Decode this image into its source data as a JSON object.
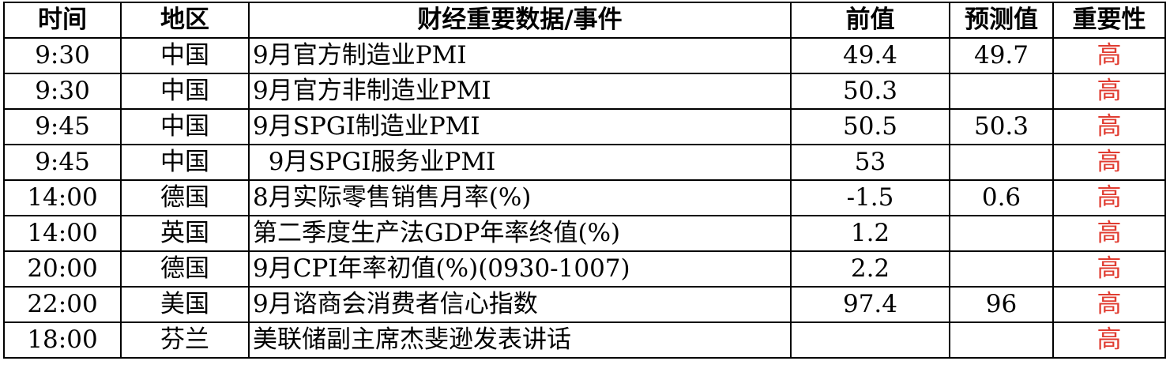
{
  "headers": [
    "时间",
    "地区",
    "财经重要数据/事件",
    "前值",
    "预测值",
    "重要性"
  ],
  "rows": [
    {
      "time": "9:30",
      "region": "中国",
      "event": "9月官方制造业PMI",
      "previous": "49.4",
      "forecast": "49.7",
      "importance": "高"
    },
    {
      "time": "9:30",
      "region": "中国",
      "event": "9月官方非制造业PMI",
      "previous": "50.3",
      "forecast": "",
      "importance": "高"
    },
    {
      "time": "9:45",
      "region": "中国",
      "event": "9月SPGI制造业PMI",
      "previous": "50.5",
      "forecast": "50.3",
      "importance": "高"
    },
    {
      "time": "9:45",
      "region": "中国",
      "event": "  9月SPGI服务业PMI",
      "previous": "53",
      "forecast": "",
      "importance": "高"
    },
    {
      "time": "14:00",
      "region": "德国",
      "event": "8月实际零售销售月率(%)",
      "previous": "-1.5",
      "forecast": "0.6",
      "importance": "高"
    },
    {
      "time": "14:00",
      "region": "英国",
      "event": "第二季度生产法GDP年率终值(%)",
      "previous": "1.2",
      "forecast": "",
      "importance": "高"
    },
    {
      "time": "20:00",
      "region": "德国",
      "event": "9月CPI年率初值(%)(0930-1007)",
      "previous": "2.2",
      "forecast": "",
      "importance": "高"
    },
    {
      "time": "22:00",
      "region": "美国",
      "event": "9月谘商会消费者信心指数",
      "previous": "97.4",
      "forecast": "96",
      "importance": "高"
    },
    {
      "time": "18:00",
      "region": "芬兰",
      "event": "美联储副主席杰斐逊发表讲话",
      "previous": "",
      "forecast": "",
      "importance": "高"
    }
  ],
  "colors": {
    "importance_high": "#e03c31",
    "border": "#000000"
  }
}
